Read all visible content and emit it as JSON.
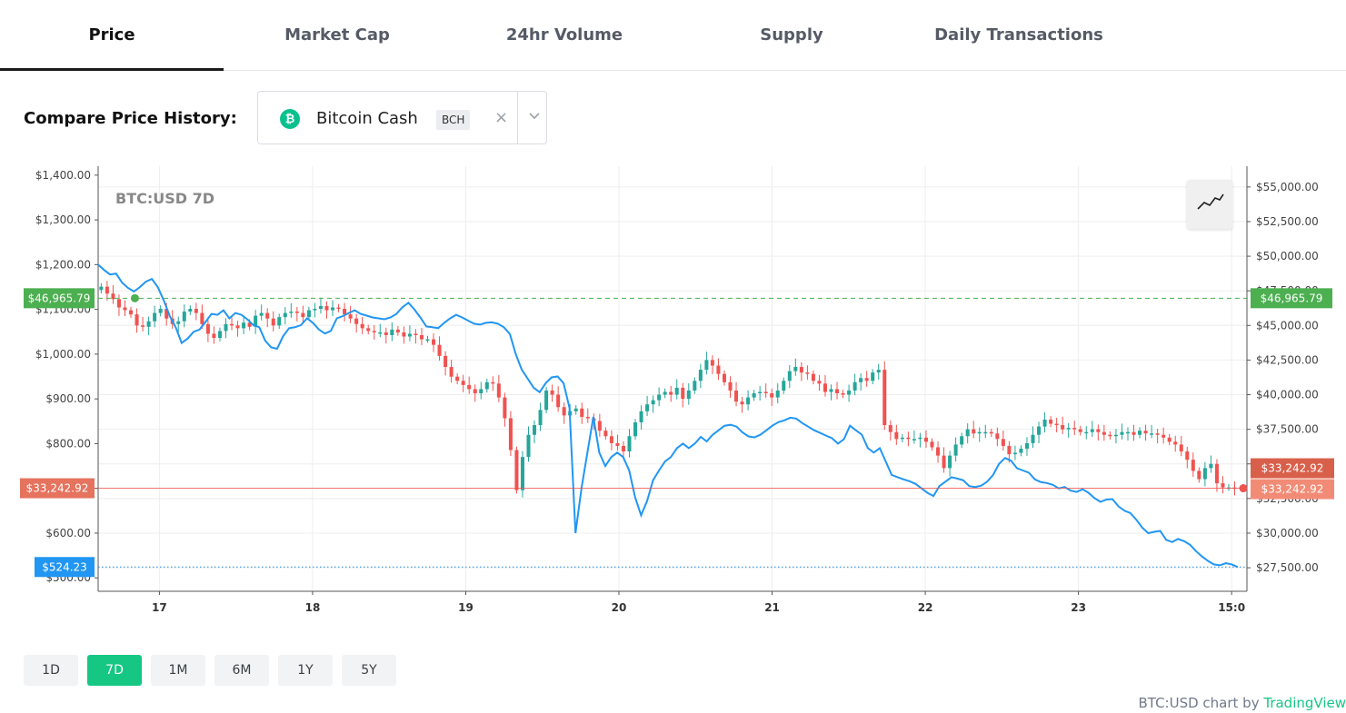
{
  "tabs": [
    {
      "label": "Price",
      "active": true
    },
    {
      "label": "Market Cap"
    },
    {
      "label": "24hr Volume"
    },
    {
      "label": "Supply"
    },
    {
      "label": "Daily Transactions"
    }
  ],
  "compare": {
    "label": "Compare Price History:",
    "coin_name": "Bitcoin Cash",
    "coin_ticker": "BCH",
    "coin_icon_glyph": "₿",
    "clear": "×"
  },
  "range_buttons": [
    "1D",
    "7D",
    "1M",
    "6M",
    "1Y",
    "5Y"
  ],
  "active_range": "7D",
  "attribution": {
    "prefix": "BTC:USD chart by ",
    "brand": "TradingView"
  },
  "colors": {
    "up": "#26a69a",
    "down": "#ef5350",
    "compare_line": "#2196f3",
    "accent": "#16c784"
  },
  "chart_data": {
    "type": "candlestick",
    "title": "BTC:USD 7D",
    "x_tick_labels": [
      "17",
      "18",
      "19",
      "20",
      "21",
      "22",
      "23",
      "15:0"
    ],
    "x_range_days": [
      16.6,
      24.1
    ],
    "left_axis": {
      "series": "Bitcoin Cash",
      "ylim": [
        470,
        1420
      ],
      "ticks": [
        "$1,400.00",
        "$1,300.00",
        "$1,200.00",
        "$1,100.00",
        "$1,000.00",
        "$900.00",
        "$800.00",
        "$700.00",
        "$600.00",
        "$500.00"
      ],
      "tick_values": [
        1400,
        1300,
        1200,
        1100,
        1000,
        900,
        800,
        700,
        600,
        500
      ]
    },
    "right_axis": {
      "series": "BTC:USD",
      "ylim": [
        25800,
        56500
      ],
      "ticks": [
        "$55,000.00",
        "$52,500.00",
        "$50,000.00",
        "$47,500.00",
        "$45,000.00",
        "$42,500.00",
        "$40,000.00",
        "$37,500.00",
        "$35,000.00",
        "$32,500.00",
        "$30,000.00",
        "$27,500.00"
      ],
      "tick_values": [
        55000,
        52500,
        50000,
        47500,
        45000,
        42500,
        40000,
        37500,
        35000,
        32500,
        30000,
        27500
      ]
    },
    "markers": {
      "start_price": {
        "label": "$46,965.79",
        "value": 46965.79
      },
      "last_price": {
        "label": "$33,242.92",
        "value": 33242.92
      },
      "compare_last": {
        "label": "$524.23",
        "value": 524.23
      }
    },
    "btc_close": [
      47800,
      47300,
      46900,
      46300,
      46100,
      45800,
      45000,
      44900,
      45300,
      45900,
      46200,
      45500,
      45100,
      45300,
      46000,
      46200,
      45900,
      45100,
      44400,
      44100,
      44600,
      45100,
      45000,
      44800,
      45200,
      44900,
      45700,
      45900,
      45500,
      45000,
      45600,
      45900,
      46000,
      45900,
      45600,
      46100,
      46200,
      46400,
      46100,
      46300,
      46200,
      45800,
      45500,
      45100,
      44800,
      44600,
      44500,
      44500,
      44300,
      44700,
      44500,
      44200,
      44400,
      44300,
      44000,
      44000,
      43600,
      42800,
      42000,
      41300,
      41000,
      40700,
      40400,
      40100,
      40400,
      40900,
      40800,
      39800,
      38300,
      36000,
      33100,
      35500,
      37100,
      37800,
      38900,
      40300,
      40000,
      39100,
      38500,
      38800,
      39000,
      38400,
      38300,
      38100,
      37400,
      37000,
      36500,
      36300,
      35900,
      37000,
      38000,
      38800,
      39300,
      39600,
      40000,
      40200,
      40000,
      40500,
      39700,
      40300,
      41000,
      41800,
      42500,
      42100,
      41500,
      40900,
      40300,
      39500,
      39300,
      39800,
      40100,
      40200,
      40100,
      39800,
      40300,
      41000,
      41700,
      42000,
      41600,
      41500,
      41000,
      40800,
      40200,
      40400,
      40100,
      40000,
      40300,
      40900,
      41200,
      41000,
      41600,
      41800,
      37800,
      37300,
      36800,
      36900,
      36800,
      36800,
      36900,
      36600,
      36200,
      35600,
      34700,
      35600,
      36400,
      37000,
      37500,
      37200,
      37300,
      37300,
      37200,
      36800,
      36300,
      35700,
      35800,
      36100,
      36500,
      37100,
      37700,
      38200,
      37900,
      37800,
      37500,
      37600,
      37500,
      37300,
      37300,
      37500,
      37300,
      37100,
      37000,
      37100,
      37300,
      37300,
      37100,
      37400,
      37200,
      37200,
      37100,
      36900,
      36600,
      36400,
      35900,
      35300,
      34500,
      33900,
      34700,
      35000,
      33600,
      33300,
      33300,
      33242.92
    ],
    "bch_close": [
      1200,
      1188,
      1178,
      1180,
      1160,
      1148,
      1140,
      1150,
      1162,
      1168,
      1150,
      1120,
      1085,
      1060,
      1025,
      1035,
      1050,
      1055,
      1072,
      1090,
      1088,
      1098,
      1080,
      1092,
      1088,
      1078,
      1065,
      1060,
      1030,
      1015,
      1012,
      1040,
      1058,
      1060,
      1065,
      1080,
      1070,
      1055,
      1046,
      1052,
      1080,
      1085,
      1092,
      1098,
      1090,
      1086,
      1082,
      1080,
      1078,
      1082,
      1090,
      1105,
      1115,
      1100,
      1082,
      1062,
      1060,
      1058,
      1070,
      1080,
      1088,
      1082,
      1075,
      1068,
      1066,
      1070,
      1071,
      1068,
      1060,
      1045,
      1000,
      965,
      945,
      925,
      915,
      935,
      948,
      950,
      935,
      880,
      600,
      700,
      780,
      860,
      780,
      750,
      770,
      780,
      770,
      740,
      680,
      640,
      672,
      718,
      740,
      760,
      770,
      790,
      800,
      790,
      800,
      815,
      805,
      820,
      830,
      840,
      842,
      838,
      825,
      816,
      814,
      820,
      830,
      840,
      848,
      852,
      858,
      856,
      846,
      838,
      830,
      824,
      818,
      812,
      800,
      810,
      840,
      830,
      820,
      790,
      780,
      790,
      760,
      730,
      725,
      720,
      716,
      710,
      700,
      690,
      683,
      705,
      715,
      725,
      722,
      718,
      705,
      703,
      706,
      715,
      730,
      755,
      768,
      762,
      745,
      740,
      735,
      720,
      714,
      712,
      708,
      700,
      703,
      695,
      692,
      698,
      690,
      678,
      670,
      675,
      676,
      660,
      650,
      645,
      630,
      612,
      600,
      603,
      605,
      585,
      580,
      587,
      582,
      574,
      560,
      548,
      538,
      530,
      528,
      533,
      530,
      524.23
    ]
  }
}
